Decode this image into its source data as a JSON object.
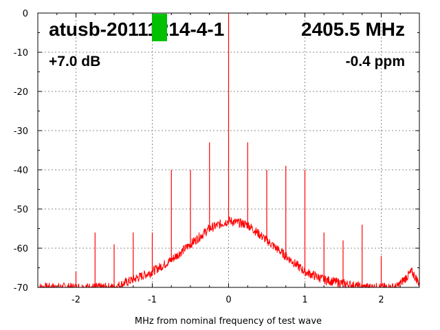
{
  "chart_data": {
    "type": "line",
    "title": "atusb-20111214-4-1",
    "frequency_label": "2405.5 MHz",
    "gain_label": "+7.0 dB",
    "offset_label": "-0.4 ppm",
    "xlabel": "MHz from nominal frequency of test wave",
    "ylabel": "",
    "xlim": [
      -2.5,
      2.5
    ],
    "ylim": [
      -70,
      0
    ],
    "grid": true,
    "x_ticks": [
      -2,
      -1,
      0,
      1,
      2
    ],
    "y_ticks": [
      0,
      -10,
      -20,
      -30,
      -40,
      -50,
      -60,
      -70
    ],
    "redacted_mark_color": "#00c000",
    "series": [
      {
        "color": "#ff0000",
        "noise_envelope": {
          "x": [
            -2.5,
            -2.0,
            -1.75,
            -1.5,
            -1.25,
            -1.0,
            -0.75,
            -0.5,
            -0.25,
            0.0,
            0.25,
            0.5,
            0.75,
            1.0,
            1.25,
            1.5,
            1.75,
            2.0,
            2.2,
            2.3,
            2.4,
            2.5
          ],
          "y": [
            -70,
            -70,
            -70,
            -70,
            -68,
            -66,
            -63,
            -59,
            -55,
            -53,
            -54,
            -58,
            -62,
            -66,
            -68,
            -69,
            -70,
            -70,
            -70,
            -68,
            -66,
            -69
          ]
        },
        "spurs": [
          {
            "x": -2.0,
            "y": -66
          },
          {
            "x": -1.75,
            "y": -56
          },
          {
            "x": -1.5,
            "y": -59
          },
          {
            "x": -1.25,
            "y": -56
          },
          {
            "x": -1.0,
            "y": -56
          },
          {
            "x": -0.75,
            "y": -40
          },
          {
            "x": -0.5,
            "y": -40
          },
          {
            "x": -0.25,
            "y": -33
          },
          {
            "x": 0.0,
            "y": 0
          },
          {
            "x": 0.25,
            "y": -33
          },
          {
            "x": 0.5,
            "y": -40
          },
          {
            "x": 0.75,
            "y": -39
          },
          {
            "x": 1.0,
            "y": -40
          },
          {
            "x": 1.25,
            "y": -56
          },
          {
            "x": 1.5,
            "y": -58
          },
          {
            "x": 1.75,
            "y": -54
          },
          {
            "x": 2.0,
            "y": -62
          }
        ]
      }
    ]
  }
}
